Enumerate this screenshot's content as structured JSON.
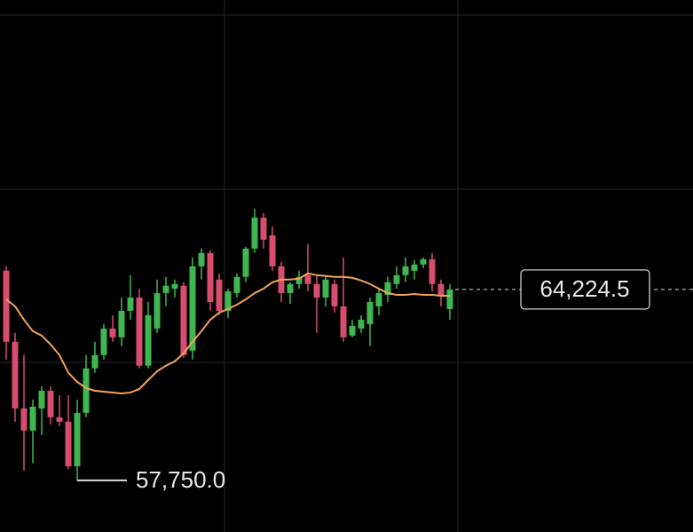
{
  "chart_data": {
    "type": "candlestick",
    "ylim": [
      56000,
      74040
    ],
    "up_color": "#3fb650",
    "down_color": "#d64d6d",
    "ma_color": "#f2a35a",
    "open": [
      64860,
      62450,
      60190,
      59440,
      60190,
      60790,
      59890,
      59740,
      58230,
      60040,
      61550,
      62000,
      62900,
      62600,
      63500,
      63950,
      61640,
      62900,
      64100,
      64250,
      64350,
      62150,
      65010,
      65460,
      64560,
      63500,
      64100,
      64650,
      65610,
      66660,
      66060,
      65010,
      64100,
      64410,
      64710,
      64410,
      63950,
      64410,
      63650,
      62660,
      62900,
      63050,
      63650,
      64040,
      64410,
      64710,
      64860,
      65070,
      65250,
      64410,
      63560
    ],
    "high": [
      65010,
      62750,
      62000,
      60490,
      60940,
      60940,
      60640,
      60640,
      60490,
      62000,
      62450,
      63050,
      63350,
      63950,
      64710,
      64250,
      63800,
      64560,
      64650,
      64560,
      64470,
      65310,
      65610,
      65550,
      64770,
      64250,
      64770,
      65670,
      66960,
      66810,
      66360,
      65160,
      64470,
      64860,
      65760,
      64710,
      64710,
      64560,
      65310,
      63200,
      63350,
      63950,
      64250,
      64650,
      65010,
      65310,
      65220,
      65310,
      65460,
      64560,
      64410
    ],
    "low": [
      61850,
      59740,
      58080,
      58330,
      59290,
      59650,
      59590,
      58140,
      57750,
      59890,
      61400,
      61850,
      62450,
      62300,
      63200,
      61550,
      61550,
      62750,
      63650,
      63950,
      61910,
      61850,
      64560,
      63500,
      63350,
      63260,
      63950,
      64470,
      65460,
      65610,
      64860,
      63800,
      63740,
      64250,
      64160,
      62750,
      63650,
      63440,
      62450,
      62600,
      62750,
      62300,
      63350,
      63800,
      64250,
      64470,
      64560,
      64950,
      64160,
      63650,
      63200
    ],
    "close": [
      62450,
      60190,
      59440,
      60250,
      60790,
      59890,
      59740,
      58230,
      60040,
      61550,
      62000,
      62900,
      62600,
      63500,
      63950,
      61640,
      63350,
      64100,
      64350,
      64410,
      62000,
      65010,
      65460,
      63800,
      63500,
      64160,
      64650,
      65610,
      66660,
      65910,
      65010,
      64100,
      64410,
      64650,
      64410,
      63950,
      64560,
      63650,
      62600,
      62990,
      63200,
      63800,
      64100,
      64470,
      64710,
      65010,
      65070,
      65250,
      64410,
      64040,
      64224.5
    ],
    "ma": [
      63890,
      63650,
      63200,
      62810,
      62660,
      62360,
      62000,
      61400,
      61090,
      60880,
      60790,
      60760,
      60730,
      60700,
      60730,
      60850,
      61150,
      61450,
      61640,
      61790,
      62060,
      62450,
      62810,
      63200,
      63440,
      63560,
      63710,
      63890,
      64100,
      64250,
      64470,
      64560,
      64560,
      64590,
      64770,
      64710,
      64680,
      64650,
      64650,
      64620,
      64530,
      64410,
      64250,
      64100,
      64040,
      64040,
      64070,
      64040,
      64040,
      64010,
      64010
    ],
    "annotations": [
      {
        "value": 64224.5,
        "label": "64,224.5"
      },
      {
        "value": 57750,
        "label": "57,750.0"
      }
    ]
  }
}
